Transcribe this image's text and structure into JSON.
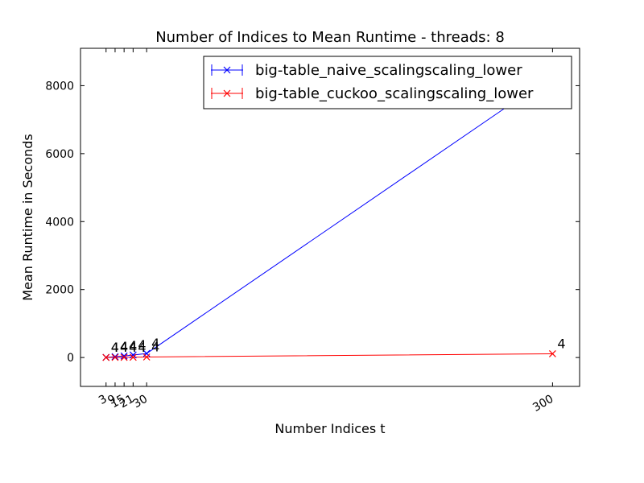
{
  "chart_data": {
    "type": "line",
    "title": "Number of Indices to Mean Runtime - threads: 8",
    "xlabel": "Number Indices t",
    "ylabel": "Mean Runtime in Seconds",
    "xlim": [
      -14,
      318
    ],
    "ylim": [
      -850,
      9100
    ],
    "xticks": [
      3,
      9,
      15,
      21,
      30,
      300
    ],
    "xtick_labels": [
      "3",
      "9",
      "15",
      "21",
      "30",
      "300"
    ],
    "yticks": [
      0,
      2000,
      4000,
      6000,
      8000
    ],
    "ytick_labels": [
      "0",
      "2000",
      "4000",
      "6000",
      "8000"
    ],
    "legend_position": "top-right",
    "series": [
      {
        "name": "big-table_naive_scalingscaling_lower",
        "color": "#0000ff",
        "x": [
          3,
          9,
          15,
          21,
          30,
          300
        ],
        "y": [
          5,
          25,
          45,
          75,
          120,
          8300
        ],
        "labels": [
          "4",
          "4",
          "4",
          "4",
          "4",
          "4"
        ]
      },
      {
        "name": "big-table_cuckoo_scalingscaling_lower",
        "color": "#ff0000",
        "x": [
          3,
          9,
          15,
          21,
          30,
          300
        ],
        "y": [
          2,
          3,
          5,
          8,
          15,
          110
        ],
        "labels": [
          "4",
          "4",
          "4",
          "4",
          "4",
          "4"
        ]
      }
    ]
  }
}
